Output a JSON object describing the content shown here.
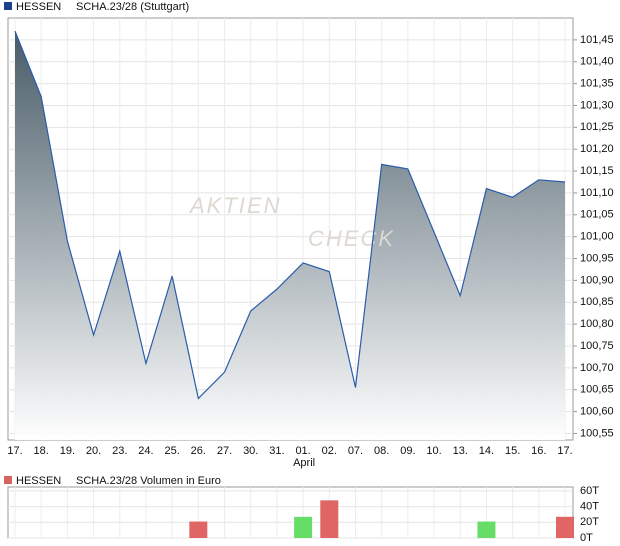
{
  "chart_data": [
    {
      "type": "area",
      "title": "SCHA.23/28 (Stuttgart)",
      "watermark": [
        "AKTIEN",
        "CHECK"
      ],
      "categories": [
        "17.",
        "18.",
        "19.",
        "20.",
        "23.",
        "24.",
        "25.",
        "26.",
        "27.",
        "30.",
        "31.",
        "01.",
        "02.",
        "07.",
        "08.",
        "09.",
        "10.",
        "13.",
        "14.",
        "15.",
        "16.",
        "17."
      ],
      "annotations": [
        {
          "label": "April",
          "at": "01."
        }
      ],
      "series": [
        {
          "name": "HESSEN",
          "color": "#2a5caa",
          "values": [
            101.47,
            101.32,
            100.99,
            100.775,
            100.967,
            100.71,
            100.91,
            100.63,
            100.69,
            100.83,
            100.88,
            100.94,
            100.92,
            100.655,
            101.165,
            101.155,
            101.01,
            100.865,
            101.11,
            101.09,
            101.13,
            101.125
          ]
        }
      ],
      "ylim": [
        100.535,
        101.5
      ],
      "yticks": [
        {
          "value": 100.55,
          "label": "100,55"
        },
        {
          "value": 100.6,
          "label": "100,60"
        },
        {
          "value": 100.65,
          "label": "100,65"
        },
        {
          "value": 100.7,
          "label": "100,70"
        },
        {
          "value": 100.75,
          "label": "100,75"
        },
        {
          "value": 100.8,
          "label": "100,80"
        },
        {
          "value": 100.85,
          "label": "100,85"
        },
        {
          "value": 100.9,
          "label": "100,90"
        },
        {
          "value": 100.95,
          "label": "100,95"
        },
        {
          "value": 101.0,
          "label": "101,00"
        },
        {
          "value": 101.05,
          "label": "101,05"
        },
        {
          "value": 101.1,
          "label": "101,10"
        },
        {
          "value": 101.15,
          "label": "101,15"
        },
        {
          "value": 101.2,
          "label": "101,20"
        },
        {
          "value": 101.25,
          "label": "101,25"
        },
        {
          "value": 101.3,
          "label": "101,30"
        },
        {
          "value": 101.35,
          "label": "101,35"
        },
        {
          "value": 101.4,
          "label": "101,40"
        },
        {
          "value": 101.45,
          "label": "101,45"
        }
      ],
      "grid": true
    },
    {
      "type": "bar",
      "title": "SCHA.23/28 Volumen in Euro",
      "series": [
        {
          "name": "HESSEN",
          "color": "#d9635f",
          "values": [
            null,
            null,
            null,
            null,
            null,
            null,
            null,
            21,
            null,
            null,
            null,
            27,
            48,
            null,
            null,
            null,
            null,
            null,
            21,
            null,
            null,
            27
          ],
          "colors": [
            null,
            null,
            null,
            null,
            null,
            null,
            null,
            "#e06666",
            null,
            null,
            null,
            "#66dd66",
            "#e06666",
            null,
            null,
            null,
            null,
            null,
            "#66dd66",
            null,
            null,
            "#e06666"
          ]
        }
      ],
      "ylim": [
        0,
        65
      ],
      "yticks": [
        {
          "value": 0,
          "label": "0T"
        },
        {
          "value": 20,
          "label": "20T"
        },
        {
          "value": 40,
          "label": "40T"
        },
        {
          "value": 60,
          "label": "60T"
        }
      ],
      "grid": true
    }
  ]
}
